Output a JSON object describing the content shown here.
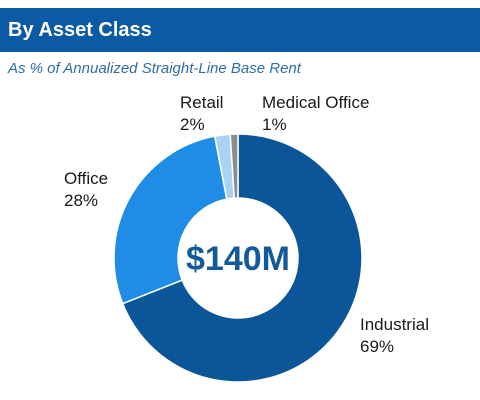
{
  "header": {
    "title": "By Asset Class"
  },
  "subtitle": "As % of Annualized Straight-Line Base Rent",
  "chart_data": {
    "type": "pie",
    "title": "By Asset Class",
    "subtitle": "As % of Annualized Straight-Line Base Rent",
    "center_label": "$140M",
    "categories": [
      "Industrial",
      "Office",
      "Retail",
      "Medical Office"
    ],
    "values": [
      69,
      28,
      2,
      1
    ],
    "value_labels": [
      "69%",
      "28%",
      "2%",
      "1%"
    ],
    "colors": [
      "#0b5599",
      "#1f8de6",
      "#a9d3f3",
      "#8c8c8c"
    ],
    "donut": true
  }
}
